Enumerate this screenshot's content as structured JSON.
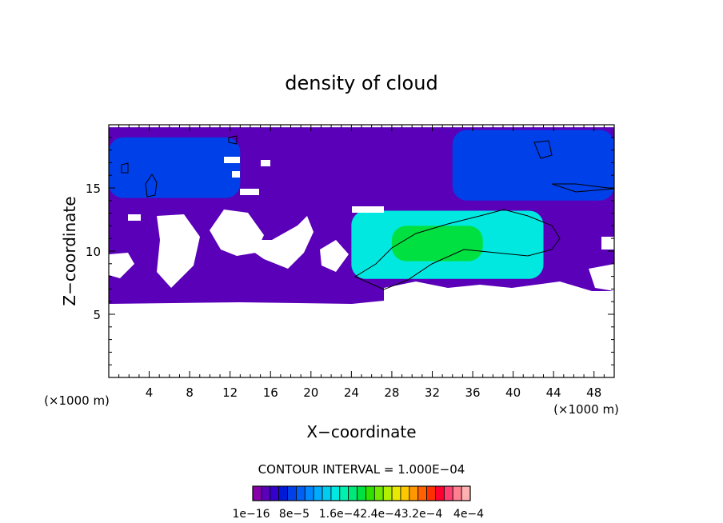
{
  "chart_data": {
    "type": "heatmap",
    "title": "density of cloud",
    "xlabel": "X−coordinate",
    "ylabel": "Z−coordinate",
    "x_unit_left": "(×1000 m)",
    "x_unit_right": "(×1000 m)",
    "xlim": [
      0,
      50
    ],
    "ylim": [
      0,
      20
    ],
    "x_ticks": [
      4,
      8,
      12,
      16,
      20,
      24,
      28,
      32,
      36,
      40,
      44,
      48
    ],
    "y_ticks": [
      5,
      10,
      15
    ],
    "contour_interval_text": "CONTOUR INTERVAL = 1.000E−04",
    "colorbar_labels": [
      "1e−16",
      "8e−5",
      "1.6e−42.4e−43.2e−4",
      "4e−4"
    ],
    "colorbar_colors": [
      "#8800aa",
      "#5a00b8",
      "#3300cc",
      "#0018d8",
      "#0040e8",
      "#0060f5",
      "#0088ff",
      "#00aaff",
      "#00ccf0",
      "#00e8e0",
      "#00f0b0",
      "#00e878",
      "#00e040",
      "#30e000",
      "#70e800",
      "#b0f000",
      "#e8e800",
      "#ffc800",
      "#ff9800",
      "#ff6000",
      "#ff3000",
      "#ff0030",
      "#ff4070",
      "#ff8090",
      "#ffb0b0"
    ],
    "cloud_regions": [
      {
        "level": 1,
        "x": [
          0,
          50
        ],
        "z": [
          5.8,
          19.8
        ]
      },
      {
        "level": 4,
        "x": [
          0,
          13
        ],
        "z": [
          14.2,
          19.0
        ]
      },
      {
        "level": 4,
        "x": [
          34,
          50
        ],
        "z": [
          14.0,
          19.6
        ]
      },
      {
        "level": 9,
        "x": [
          24,
          43
        ],
        "z": [
          7.8,
          13.2
        ]
      },
      {
        "level": 12,
        "x": [
          28,
          37
        ],
        "z": [
          9.2,
          12.0
        ]
      }
    ]
  }
}
